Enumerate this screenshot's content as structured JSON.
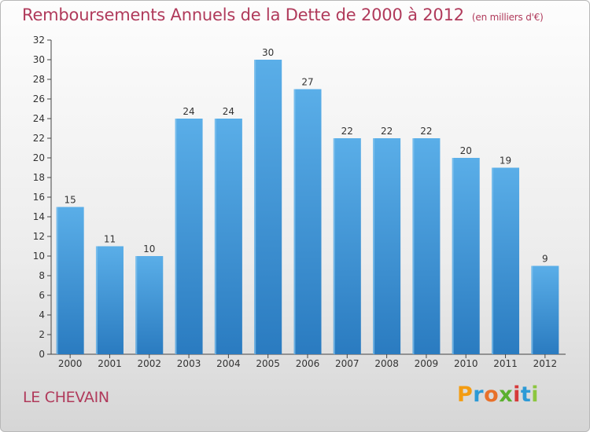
{
  "header": {
    "title": "Remboursements Annuels de la Dette de 2000 à 2012",
    "subtitle": "(en milliers d'€)"
  },
  "footer": {
    "town": "LE CHEVAIN",
    "logo_text": "Proxiti"
  },
  "colors": {
    "bar_top": "#5aaee8",
    "bar_bottom": "#2a7bc0",
    "title": "#b03a5b"
  },
  "chart_data": {
    "type": "bar",
    "categories": [
      "2000",
      "2001",
      "2002",
      "2003",
      "2004",
      "2005",
      "2006",
      "2007",
      "2008",
      "2009",
      "2010",
      "2011",
      "2012"
    ],
    "values": [
      15,
      11,
      10,
      24,
      24,
      30,
      27,
      22,
      22,
      22,
      20,
      19,
      9
    ],
    "ylim": [
      0,
      32
    ],
    "yticks": [
      0,
      2,
      4,
      6,
      8,
      10,
      12,
      14,
      16,
      18,
      20,
      22,
      24,
      26,
      28,
      30,
      32
    ],
    "grid": false,
    "legend": "none"
  }
}
